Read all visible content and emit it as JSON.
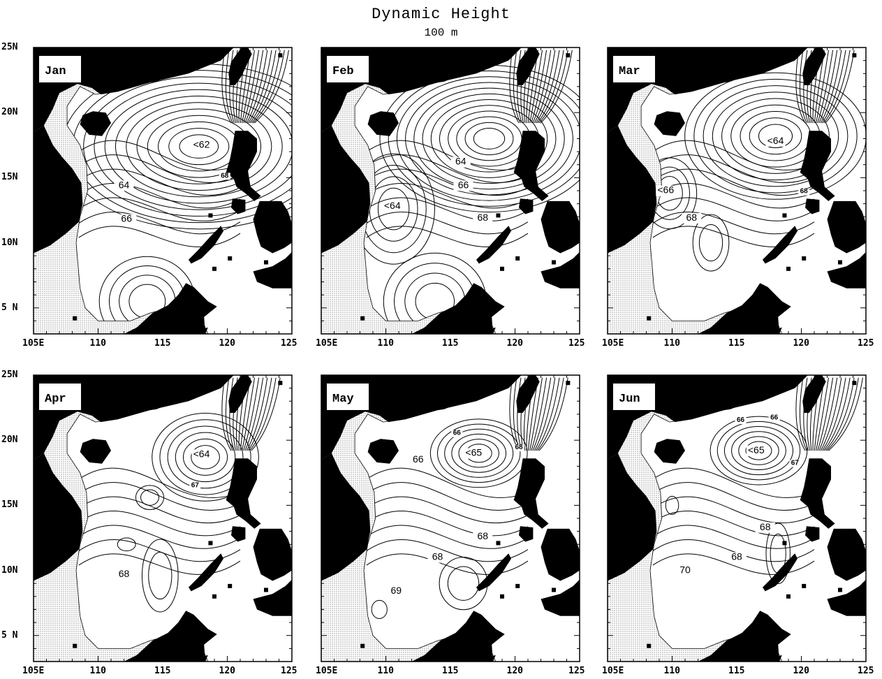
{
  "title": "Dynamic Height",
  "subtitle": "100 m",
  "x_ticks": [
    "105E",
    "110",
    "115",
    "120",
    "125"
  ],
  "y_ticks": [
    "25N",
    "20N",
    "15N",
    "10N",
    "5 N"
  ],
  "colors": {
    "land": "#000000",
    "shelf_stipple": "#9a9a9a",
    "background": "#ffffff",
    "contour": "#000000"
  },
  "panels": [
    {
      "month": "Jan",
      "labels": [
        {
          "text": "<62",
          "lon": 118,
          "lat": 17.3
        },
        {
          "text": "64",
          "lon": 112,
          "lat": 14.2
        },
        {
          "text": "66",
          "lon": 112.2,
          "lat": 11.6
        },
        {
          "text": "68",
          "lon": 119.8,
          "lat": 15.0
        }
      ]
    },
    {
      "month": "Feb",
      "labels": [
        {
          "text": "64",
          "lon": 115.8,
          "lat": 16.0
        },
        {
          "text": "<64",
          "lon": 110.5,
          "lat": 12.6
        },
        {
          "text": "66",
          "lon": 116.0,
          "lat": 14.2
        },
        {
          "text": "68",
          "lon": 117.5,
          "lat": 11.7
        }
      ]
    },
    {
      "month": "Mar",
      "labels": [
        {
          "text": "<64",
          "lon": 118,
          "lat": 17.6
        },
        {
          "text": "<66",
          "lon": 109.5,
          "lat": 13.8
        },
        {
          "text": "68",
          "lon": 111.5,
          "lat": 11.7
        },
        {
          "text": "68",
          "lon": 120.2,
          "lat": 13.8
        }
      ]
    },
    {
      "month": "Apr",
      "labels": [
        {
          "text": "<64",
          "lon": 118,
          "lat": 18.7
        },
        {
          "text": "67",
          "lon": 117.5,
          "lat": 16.4
        },
        {
          "text": "68",
          "lon": 112,
          "lat": 9.5
        }
      ]
    },
    {
      "month": "May",
      "labels": [
        {
          "text": "<65",
          "lon": 116.8,
          "lat": 18.8
        },
        {
          "text": "66",
          "lon": 112.5,
          "lat": 18.3
        },
        {
          "text": "66",
          "lon": 115.5,
          "lat": 20.4
        },
        {
          "text": "68",
          "lon": 114,
          "lat": 10.8
        },
        {
          "text": "68",
          "lon": 117.5,
          "lat": 12.4
        },
        {
          "text": "69",
          "lon": 110.8,
          "lat": 8.2
        },
        {
          "text": "68",
          "lon": 120.3,
          "lat": 19.3
        }
      ]
    },
    {
      "month": "Jun",
      "labels": [
        {
          "text": "<65",
          "lon": 116.5,
          "lat": 19.0
        },
        {
          "text": "66",
          "lon": 115.3,
          "lat": 21.4
        },
        {
          "text": "66",
          "lon": 117.9,
          "lat": 21.6
        },
        {
          "text": "67",
          "lon": 119.5,
          "lat": 18.1
        },
        {
          "text": "68",
          "lon": 117.2,
          "lat": 13.1
        },
        {
          "text": "68",
          "lon": 115.0,
          "lat": 10.8
        },
        {
          "text": "70",
          "lon": 111.0,
          "lat": 9.8
        }
      ]
    }
  ]
}
